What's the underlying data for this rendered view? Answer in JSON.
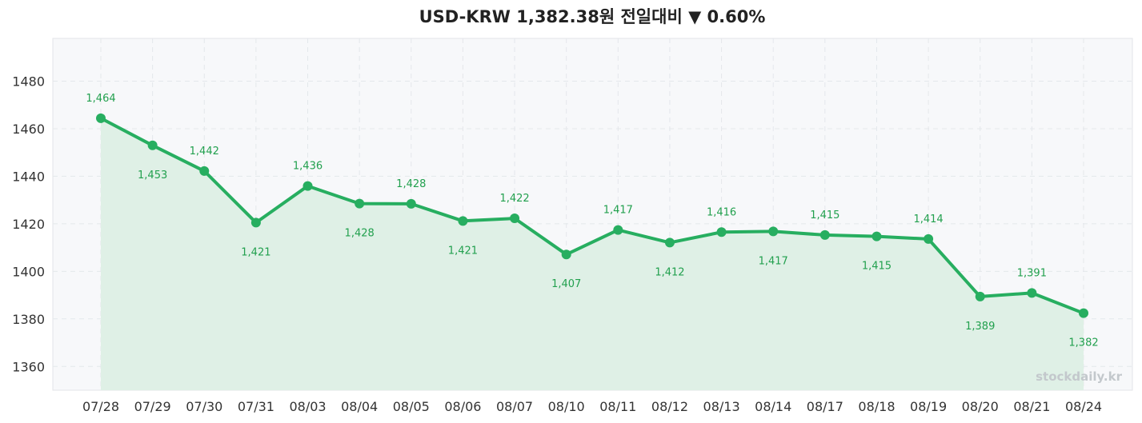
{
  "chart_data": {
    "type": "line",
    "title": "USD-KRW  1,382.38원  전일대비 ▼ 0.60%",
    "categories": [
      "07/28",
      "07/29",
      "07/30",
      "07/31",
      "08/03",
      "08/04",
      "08/05",
      "08/06",
      "08/07",
      "08/10",
      "08/11",
      "08/12",
      "08/13",
      "08/14",
      "08/17",
      "08/18",
      "08/19",
      "08/20",
      "08/21",
      "08/24"
    ],
    "series": [
      {
        "values": [
          1464.4,
          1453.0,
          1442.2,
          1420.5,
          1435.9,
          1428.5,
          1428.4,
          1421.2,
          1422.3,
          1407.1,
          1417.4,
          1412.1,
          1416.5,
          1416.8,
          1415.3,
          1414.7,
          1413.6,
          1389.4,
          1390.9,
          1382.4
        ],
        "labels": [
          "1,464",
          "1,453",
          "1,442",
          "1,421",
          "1,436",
          "1,428",
          "1,428",
          "1,421",
          "1,422",
          "1,407",
          "1,417",
          "1,412",
          "1,416",
          "1,417",
          "1,415",
          "1,415",
          "1,414",
          "1,389",
          "1,391",
          "1,382"
        ],
        "label_side": [
          "up",
          "down",
          "up",
          "down",
          "up",
          "down",
          "up",
          "down",
          "up",
          "down",
          "up",
          "down",
          "up",
          "down",
          "up",
          "down",
          "up",
          "down",
          "up",
          "down"
        ]
      }
    ],
    "ylim": [
      1350,
      1498
    ],
    "yticks": [
      1360,
      1380,
      1400,
      1420,
      1440,
      1460,
      1480
    ],
    "xlabel": "",
    "ylabel": "",
    "grid": true,
    "area_fill": true,
    "colors": {
      "line": "#27ae60",
      "fill": "#dff0e6",
      "label": "#22a04e",
      "plot_bg": "#f7f8fa",
      "grid": "#e4e7eb"
    }
  },
  "watermark": "stockdaily.kr"
}
